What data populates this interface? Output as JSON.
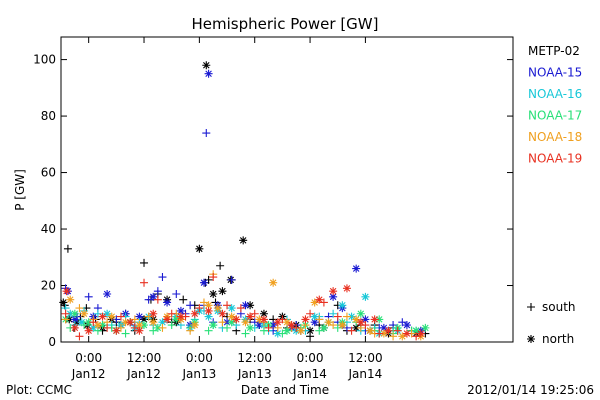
{
  "chart_data": {
    "type": "scatter",
    "title": "Hemispheric Power [GW]",
    "ylabel": "P [GW]",
    "xlabel": "Date and Time",
    "ylim": [
      0,
      108
    ],
    "xlim": [
      -6,
      92
    ],
    "x_unit": "hours since 2012-01-12 00:00 UT",
    "yticks": [
      0,
      20,
      40,
      60,
      80,
      100
    ],
    "xticks": [
      {
        "x": 0,
        "time": "0:00",
        "date": "Jan12"
      },
      {
        "x": 12,
        "time": "12:00",
        "date": "Jan12"
      },
      {
        "x": 24,
        "time": "0:00",
        "date": "Jan13"
      },
      {
        "x": 36,
        "time": "12:00",
        "date": "Jan13"
      },
      {
        "x": 48,
        "time": "0:00",
        "date": "Jan14"
      },
      {
        "x": 60,
        "time": "12:00",
        "date": "Jan14"
      }
    ],
    "marker_legend": {
      "south": "south",
      "north": "north"
    },
    "grid": false,
    "legend_position": "right",
    "series": [
      {
        "name": "METP-02",
        "color": "#000000",
        "south": [
          [
            -5.2,
            13
          ],
          [
            -4.5,
            33
          ],
          [
            -3.2,
            5
          ],
          [
            -1.8,
            9
          ],
          [
            -0.5,
            12
          ],
          [
            1.5,
            8
          ],
          [
            3,
            4
          ],
          [
            6,
            7
          ],
          [
            8,
            10
          ],
          [
            10,
            4
          ],
          [
            12,
            28
          ],
          [
            13.5,
            15
          ],
          [
            15,
            17
          ],
          [
            18,
            7
          ],
          [
            20.5,
            15
          ],
          [
            23,
            13
          ],
          [
            25.3,
            21
          ],
          [
            26,
            22
          ],
          [
            27.5,
            14
          ],
          [
            28.5,
            27
          ],
          [
            30,
            9
          ],
          [
            31,
            22
          ],
          [
            32,
            4
          ],
          [
            35,
            8
          ],
          [
            37,
            6
          ],
          [
            40,
            8
          ],
          [
            43,
            5
          ],
          [
            46,
            4
          ],
          [
            48,
            2
          ],
          [
            50,
            6
          ],
          [
            54,
            13
          ],
          [
            56,
            4
          ],
          [
            59,
            6
          ],
          [
            62,
            6
          ],
          [
            66,
            5
          ],
          [
            70,
            4
          ],
          [
            73,
            3
          ]
        ],
        "north": [
          [
            -5.5,
            14
          ],
          [
            -4.2,
            8
          ],
          [
            -2.5,
            7
          ],
          [
            -0.3,
            6
          ],
          [
            3,
            5
          ],
          [
            5,
            8
          ],
          [
            7,
            6
          ],
          [
            9,
            7
          ],
          [
            12,
            8
          ],
          [
            14,
            8
          ],
          [
            17,
            15
          ],
          [
            19,
            7
          ],
          [
            24,
            33
          ],
          [
            25.5,
            98
          ],
          [
            27,
            17
          ],
          [
            29,
            18
          ],
          [
            30.8,
            22
          ],
          [
            33.5,
            36
          ],
          [
            35,
            13
          ],
          [
            38,
            10
          ],
          [
            42,
            9
          ],
          [
            45,
            6
          ],
          [
            48,
            4
          ],
          [
            51,
            5
          ],
          [
            55,
            6
          ],
          [
            58,
            5
          ],
          [
            61,
            4
          ],
          [
            65,
            3
          ],
          [
            71,
            3
          ]
        ]
      },
      {
        "name": "NOAA-15",
        "color": "#1a1ad2",
        "south": [
          [
            -5,
            19
          ],
          [
            -2.5,
            9
          ],
          [
            0,
            16
          ],
          [
            2,
            12
          ],
          [
            6,
            8
          ],
          [
            10,
            6
          ],
          [
            13,
            15
          ],
          [
            15,
            18
          ],
          [
            16,
            23
          ],
          [
            19,
            17
          ],
          [
            21,
            10
          ],
          [
            22,
            13
          ],
          [
            25,
            13
          ],
          [
            25.5,
            74
          ],
          [
            27,
            7
          ],
          [
            31,
            22
          ],
          [
            33,
            10
          ],
          [
            36,
            7
          ],
          [
            38,
            7
          ],
          [
            40,
            4
          ],
          [
            45,
            6
          ],
          [
            50,
            8
          ],
          [
            52,
            9
          ],
          [
            54,
            7
          ],
          [
            56,
            5
          ],
          [
            60,
            4
          ],
          [
            63,
            5
          ],
          [
            66,
            6
          ],
          [
            68,
            7
          ],
          [
            72,
            3
          ]
        ],
        "north": [
          [
            -4.5,
            18
          ],
          [
            -3,
            8
          ],
          [
            1,
            9
          ],
          [
            4,
            17
          ],
          [
            8,
            10
          ],
          [
            11,
            9
          ],
          [
            14,
            16
          ],
          [
            17,
            14
          ],
          [
            20,
            11
          ],
          [
            22,
            6
          ],
          [
            25,
            21
          ],
          [
            26,
            95
          ],
          [
            28,
            13
          ],
          [
            30,
            7
          ],
          [
            34,
            13
          ],
          [
            37,
            6
          ],
          [
            40,
            6
          ],
          [
            44,
            5
          ],
          [
            49,
            7
          ],
          [
            53,
            16
          ],
          [
            55,
            12
          ],
          [
            58,
            26
          ],
          [
            60,
            8
          ],
          [
            64,
            5
          ],
          [
            69,
            6
          ],
          [
            72,
            4
          ]
        ]
      },
      {
        "name": "NOAA-16",
        "color": "#18c8d8",
        "south": [
          [
            -5,
            12
          ],
          [
            -3,
            6
          ],
          [
            -1,
            11
          ],
          [
            2,
            10
          ],
          [
            5,
            6
          ],
          [
            8,
            9
          ],
          [
            11,
            7
          ],
          [
            14,
            6
          ],
          [
            17,
            8
          ],
          [
            20,
            6
          ],
          [
            23,
            8
          ],
          [
            25,
            11
          ],
          [
            27,
            6
          ],
          [
            29,
            5
          ],
          [
            32,
            6
          ],
          [
            36,
            5
          ],
          [
            39,
            4
          ],
          [
            43,
            8
          ],
          [
            47,
            4
          ],
          [
            50,
            9
          ],
          [
            53,
            10
          ],
          [
            56,
            7
          ],
          [
            59,
            4
          ],
          [
            62,
            5
          ],
          [
            66,
            4
          ],
          [
            70,
            4
          ]
        ],
        "north": [
          [
            -4,
            10
          ],
          [
            -1.5,
            7
          ],
          [
            1,
            5
          ],
          [
            4,
            10
          ],
          [
            7,
            6
          ],
          [
            10,
            5
          ],
          [
            13,
            9
          ],
          [
            16,
            7
          ],
          [
            19,
            9
          ],
          [
            22,
            5
          ],
          [
            24,
            11
          ],
          [
            26,
            9
          ],
          [
            28,
            11
          ],
          [
            31,
            12
          ],
          [
            34,
            8
          ],
          [
            38,
            6
          ],
          [
            41,
            3
          ],
          [
            45,
            4
          ],
          [
            49,
            9
          ],
          [
            52,
            7
          ],
          [
            55,
            13
          ],
          [
            57,
            9
          ],
          [
            60,
            16
          ],
          [
            63,
            3
          ],
          [
            67,
            4
          ],
          [
            71,
            4
          ]
        ]
      },
      {
        "name": "NOAA-17",
        "color": "#28e078",
        "south": [
          [
            -4,
            5
          ],
          [
            -1,
            6
          ],
          [
            2,
            4
          ],
          [
            5,
            5
          ],
          [
            8,
            3
          ],
          [
            11,
            5
          ],
          [
            14,
            4
          ],
          [
            18,
            6
          ],
          [
            22,
            5
          ],
          [
            26,
            4
          ],
          [
            30,
            5
          ],
          [
            34,
            3
          ],
          [
            38,
            4
          ],
          [
            42,
            3
          ],
          [
            46,
            5
          ],
          [
            50,
            4
          ],
          [
            54,
            5
          ],
          [
            58,
            7
          ],
          [
            62,
            4
          ],
          [
            66,
            3
          ],
          [
            70,
            4
          ]
        ],
        "north": [
          [
            -5,
            8
          ],
          [
            -3,
            10
          ],
          [
            0,
            7
          ],
          [
            3,
            6
          ],
          [
            6,
            4
          ],
          [
            9,
            7
          ],
          [
            12,
            6
          ],
          [
            15,
            5
          ],
          [
            19,
            8
          ],
          [
            23,
            7
          ],
          [
            27,
            6
          ],
          [
            31,
            7
          ],
          [
            35,
            5
          ],
          [
            39,
            6
          ],
          [
            43,
            4
          ],
          [
            47,
            6
          ],
          [
            51,
            5
          ],
          [
            55,
            7
          ],
          [
            59,
            10
          ],
          [
            63,
            8
          ],
          [
            67,
            5
          ],
          [
            71,
            4
          ],
          [
            73,
            5
          ]
        ]
      },
      {
        "name": "NOAA-18",
        "color": "#f0a020",
        "south": [
          [
            -5,
            8
          ],
          [
            -2,
            12
          ],
          [
            1,
            8
          ],
          [
            4,
            7
          ],
          [
            7,
            5
          ],
          [
            10,
            8
          ],
          [
            13,
            9
          ],
          [
            16,
            5
          ],
          [
            19,
            10
          ],
          [
            22,
            4
          ],
          [
            25,
            14
          ],
          [
            27,
            24
          ],
          [
            29,
            7
          ],
          [
            32,
            8
          ],
          [
            35,
            9
          ],
          [
            38,
            7
          ],
          [
            41,
            5
          ],
          [
            44,
            5
          ],
          [
            47,
            6
          ],
          [
            50,
            8
          ],
          [
            53,
            6
          ],
          [
            56,
            9
          ],
          [
            59,
            5
          ],
          [
            62,
            3
          ],
          [
            66,
            2
          ],
          [
            70,
            3
          ]
        ],
        "north": [
          [
            -4,
            15
          ],
          [
            -1,
            10
          ],
          [
            2,
            6
          ],
          [
            5,
            9
          ],
          [
            8,
            7
          ],
          [
            11,
            6
          ],
          [
            14,
            7
          ],
          [
            17,
            9
          ],
          [
            20,
            8
          ],
          [
            23,
            6
          ],
          [
            26,
            13
          ],
          [
            28,
            12
          ],
          [
            31,
            9
          ],
          [
            34,
            7
          ],
          [
            37,
            8
          ],
          [
            40,
            21
          ],
          [
            43,
            7
          ],
          [
            46,
            4
          ],
          [
            49,
            14
          ],
          [
            52,
            7
          ],
          [
            55,
            6
          ],
          [
            58,
            8
          ],
          [
            61,
            4
          ],
          [
            64,
            3
          ],
          [
            68,
            2
          ],
          [
            72,
            2
          ]
        ]
      },
      {
        "name": "NOAA-19",
        "color": "#e83020",
        "south": [
          [
            -5,
            10
          ],
          [
            -2,
            2
          ],
          [
            1,
            7
          ],
          [
            4,
            5
          ],
          [
            7,
            9
          ],
          [
            10,
            5
          ],
          [
            12,
            21
          ],
          [
            15,
            15
          ],
          [
            18,
            10
          ],
          [
            21,
            9
          ],
          [
            24,
            12
          ],
          [
            27,
            23
          ],
          [
            30,
            13
          ],
          [
            33,
            12
          ],
          [
            36,
            10
          ],
          [
            39,
            5
          ],
          [
            42,
            8
          ],
          [
            45,
            5
          ],
          [
            48,
            10
          ],
          [
            51,
            14
          ],
          [
            54,
            9
          ],
          [
            57,
            4
          ],
          [
            60,
            6
          ],
          [
            63,
            3
          ],
          [
            67,
            4
          ],
          [
            71,
            2
          ]
        ],
        "north": [
          [
            -4.8,
            18
          ],
          [
            -3,
            5
          ],
          [
            0,
            4
          ],
          [
            3,
            9
          ],
          [
            6,
            4
          ],
          [
            9,
            7
          ],
          [
            11,
            4
          ],
          [
            14,
            10
          ],
          [
            17,
            8
          ],
          [
            20,
            9
          ],
          [
            23,
            10
          ],
          [
            26,
            11
          ],
          [
            29,
            10
          ],
          [
            32,
            8
          ],
          [
            35,
            9
          ],
          [
            38,
            8
          ],
          [
            41,
            7
          ],
          [
            44,
            6
          ],
          [
            47,
            8
          ],
          [
            50,
            15
          ],
          [
            53,
            18
          ],
          [
            56,
            19
          ],
          [
            59,
            7
          ],
          [
            62,
            8
          ],
          [
            65,
            4
          ],
          [
            69,
            3
          ],
          [
            72,
            3
          ]
        ]
      }
    ]
  },
  "footer": {
    "left": "Plot: CCMC",
    "center": "Date and Time",
    "right": "2012/01/14 19:25:06"
  }
}
